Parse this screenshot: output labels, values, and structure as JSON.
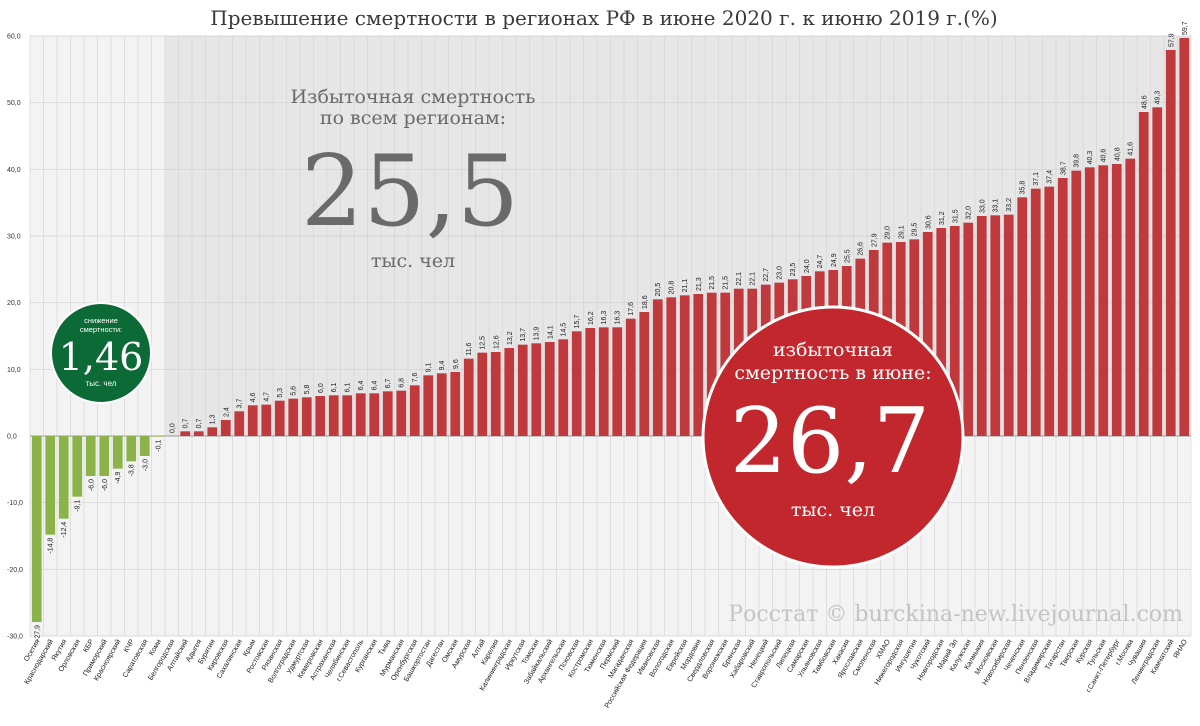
{
  "chart_data": {
    "type": "bar",
    "title": "Превышение смертности в регионах РФ в июне 2020 г. к июню 2019 г.(%)",
    "xlabel": "",
    "ylabel": "",
    "ylim": [
      -30,
      60
    ],
    "yticks": [
      "-30,0",
      "-20,0",
      "-10,0",
      "0,0",
      "10,0",
      "20,0",
      "30,0",
      "40,0",
      "50,0",
      "60,0"
    ],
    "grid": true,
    "categories": [
      "Осетия",
      "Краснодарский",
      "Якутия",
      "Орловская",
      "КБР",
      "Приморский",
      "Красноярский",
      "КЧР",
      "Саратовская",
      "Коми",
      "Белгородская",
      "Алтайский",
      "Адыгея",
      "Бурятия",
      "Кировская",
      "Сахалинская",
      "Крым",
      "Ростовская",
      "Рязанская",
      "Волгоградская",
      "Удмуртская",
      "Кемеровская",
      "Астраханская",
      "Челябинская",
      "г.Севастополь",
      "Курганская",
      "Тыва",
      "Мурманская",
      "Оренбургская",
      "Башкортостан",
      "Дагестан",
      "Омская",
      "Амурская",
      "Алтай",
      "Карелия",
      "Калининградская",
      "Иркутская",
      "Томская",
      "Забайкальский",
      "Архангельская",
      "Псковская",
      "Костромская",
      "Тюменская",
      "Пермский",
      "Магаданская",
      "Российская Федерация",
      "Ивановская",
      "Вологодская",
      "Еврейская",
      "Мордовия",
      "Свердловская",
      "Воронежская",
      "Брянская",
      "Хабаровский",
      "Ненецкий",
      "Ставропольский",
      "Липецкая",
      "Самарская",
      "Ульяновская",
      "Тамбовская",
      "Хакасия",
      "Ярославская",
      "Смоленская",
      "ХМАО",
      "Нижегородская",
      "Ингушетия",
      "Чукотский",
      "Новгородская",
      "Марий Эл",
      "Калужская",
      "Калмыкия",
      "Московская",
      "Новосибирская",
      "Чеченская",
      "Пензенская",
      "Владимирская",
      "Татарстан",
      "Тверская",
      "Курская",
      "Тульская",
      "г.Санкт-Петербург",
      "г.Москва",
      "Чувашия",
      "Ленинградская",
      "Камчатский",
      "ЯНАО"
    ],
    "values": [
      -27.9,
      -14.8,
      -12.4,
      -9.1,
      -6.0,
      -6.0,
      -4.9,
      -3.8,
      -3.0,
      -0.1,
      0.0,
      0.7,
      0.7,
      1.3,
      2.4,
      3.7,
      4.6,
      4.7,
      5.3,
      5.6,
      5.8,
      6.0,
      6.1,
      6.1,
      6.4,
      6.4,
      6.7,
      6.8,
      7.6,
      9.1,
      9.4,
      9.6,
      11.6,
      12.5,
      12.6,
      13.2,
      13.7,
      13.9,
      14.1,
      14.5,
      15.7,
      16.2,
      16.3,
      16.3,
      17.6,
      18.6,
      20.5,
      20.8,
      21.1,
      21.3,
      21.5,
      21.5,
      22.1,
      22.1,
      22.7,
      23.0,
      23.5,
      24.0,
      24.7,
      24.9,
      25.5,
      26.6,
      27.9,
      29.0,
      29.1,
      29.5,
      30.6,
      31.2,
      31.5,
      32.0,
      33.0,
      33.1,
      33.2,
      35.8,
      37.1,
      37.4,
      38.7,
      39.8,
      40.3,
      40.6,
      40.8,
      41.6,
      48.6,
      49.3,
      57.9,
      59.7
    ],
    "value_labels": [
      "-27,9",
      "-14,8",
      "-12,4",
      "-9,1",
      "-6,0",
      "-6,0",
      "-4,9",
      "-3,8",
      "-3,0",
      "-0,1",
      "0,0",
      "0,7",
      "0,7",
      "1,3",
      "2,4",
      "3,7",
      "4,6",
      "4,7",
      "5,3",
      "5,6",
      "5,8",
      "6,0",
      "6,1",
      "6,1",
      "6,4",
      "6,4",
      "6,7",
      "6,8",
      "7,6",
      "9,1",
      "9,4",
      "9,6",
      "11,6",
      "12,5",
      "12,6",
      "13,2",
      "13,7",
      "13,9",
      "14,1",
      "14,5",
      "15,7",
      "16,2",
      "16,3",
      "16,3",
      "17,6",
      "18,6",
      "20,5",
      "20,8",
      "21,1",
      "21,3",
      "21,5",
      "21,5",
      "22,1",
      "22,1",
      "22,7",
      "23,0",
      "23,5",
      "24,0",
      "24,7",
      "24,9",
      "25,5",
      "26,6",
      "27,9",
      "29,0",
      "29,1",
      "29,5",
      "30,6",
      "31,2",
      "31,5",
      "32,0",
      "33,0",
      "33,1",
      "33,2",
      "35,8",
      "37,1",
      "37,4",
      "38,7",
      "39,8",
      "40,3",
      "40,6",
      "40,8",
      "41,6",
      "48,6",
      "49,3",
      "57,9",
      "59,7"
    ],
    "colors": {
      "positive": "#c0393d",
      "negative": "#8cb34a",
      "total_bubble": "#c1272d",
      "decrease_badge": "#0c6a36"
    },
    "annotations": {
      "left": {
        "line1": "Избыточная смертность",
        "line2": "по всем регионам:",
        "value": "25,5",
        "unit": "тыс. чел"
      },
      "badge": {
        "line1": "снижение",
        "line2": "смертности:",
        "value": "1,46",
        "unit": "тыс. чел"
      },
      "bubble": {
        "line1": "избыточная",
        "line2": "смертность в июне:",
        "value": "26,7",
        "unit": "тыс. чел"
      },
      "source": "Росстат © burckina-new.livejournal.com"
    }
  }
}
